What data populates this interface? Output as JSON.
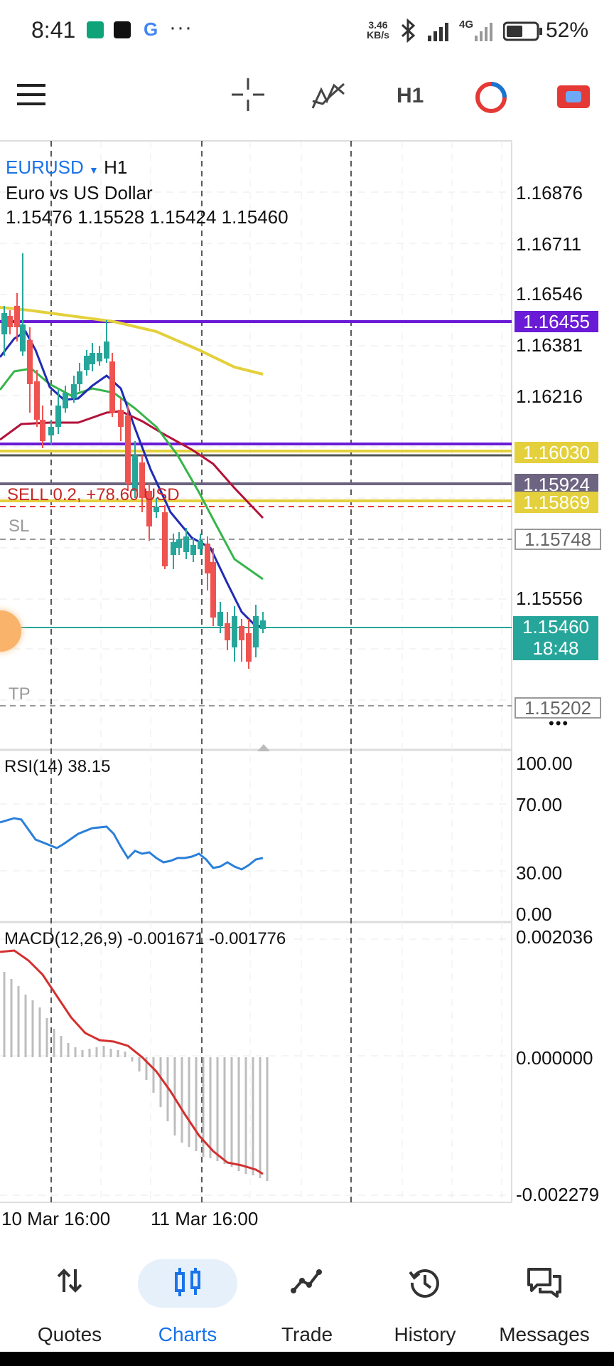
{
  "status_bar": {
    "time": "8:41",
    "net_speed_value": "3.46",
    "net_speed_unit": "KB/s",
    "battery": "52%",
    "signal_label": "4G",
    "overflow": "···"
  },
  "toolbar": {
    "timeframe": "H1",
    "icons": [
      "menu-icon",
      "crosshair-icon",
      "indicators-icon",
      "timeframe-H1",
      "clock-icon",
      "trade-icon"
    ]
  },
  "chart": {
    "symbol": "EURUSD",
    "timeframe": "H1",
    "description": "Euro vs US Dollar",
    "ohlc": "1.15476 1.15528 1.15424 1.15460",
    "price_axis": [
      "1.16876",
      "1.16711",
      "1.16546",
      "1.16381",
      "1.16216",
      "1.15556"
    ],
    "tags": {
      "line_purple": "1.16455",
      "line_yellow": "1.16030",
      "line_grey": "1.15924",
      "line_yellow2": "1.15869",
      "sl": "1.15748",
      "current_price": "1.15460",
      "current_time": "18:48",
      "tp": "1.15202"
    },
    "order_label": "SELL 0.2, +78.60 USD",
    "sl_label": "SL",
    "tp_label": "TP",
    "more": "•••",
    "colors": {
      "purple": "#6a1bd6",
      "yellow": "#e3d03c",
      "current": "#26a69a",
      "bull": "#26a69a",
      "bear": "#ef5350",
      "ma_fast": "#1f2bb3",
      "ma_green": "#36b54a",
      "ma_red": "#b3123a",
      "ma_yellow": "#e3d03c"
    }
  },
  "rsi": {
    "label": "RSI(14) 38.15",
    "levels": [
      "100.00",
      "70.00",
      "30.00",
      "0.00"
    ]
  },
  "macd": {
    "label": "MACD(12,26,9) -0.001671 -0.001776",
    "levels": [
      "0.002036",
      "0.000000",
      "-0.002279"
    ]
  },
  "time_axis": [
    "10 Mar 16:00",
    "11 Mar 16:00"
  ],
  "bottom_nav": {
    "items": [
      {
        "label": "Quotes"
      },
      {
        "label": "Charts",
        "active": true
      },
      {
        "label": "Trade"
      },
      {
        "label": "History"
      },
      {
        "label": "Messages"
      }
    ]
  }
}
